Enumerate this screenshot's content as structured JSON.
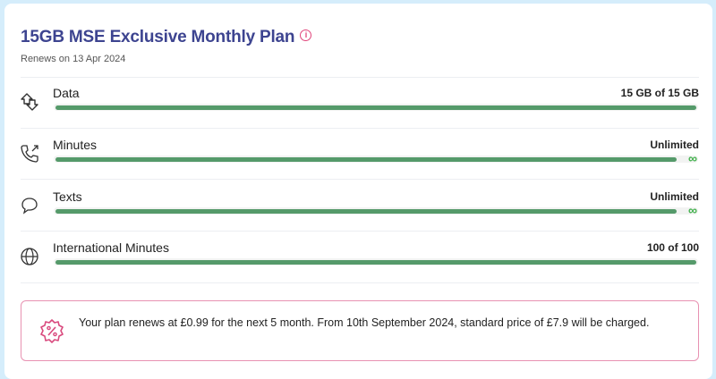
{
  "plan": {
    "title": "15GB MSE Exclusive Monthly Plan",
    "info_icon": "info-circle-icon",
    "renews": "Renews on 13 Apr 2024"
  },
  "usage": [
    {
      "label": "Data",
      "value": "15 GB of 15 GB",
      "icon": "data-arrows-icon",
      "fill_percent": 100,
      "unlimited": false
    },
    {
      "label": "Minutes",
      "value": "Unlimited",
      "icon": "phone-icon",
      "fill_percent": 100,
      "unlimited": true
    },
    {
      "label": "Texts",
      "value": "Unlimited",
      "icon": "chat-bubble-icon",
      "fill_percent": 100,
      "unlimited": true
    },
    {
      "label": "International Minutes",
      "value": "100 of 100",
      "icon": "globe-icon",
      "fill_percent": 100,
      "unlimited": false
    }
  ],
  "banner": {
    "icon": "discount-badge-icon",
    "text": "Your plan renews at £0.99 for the next 5 month. From 10th September 2024, standard price of £7.9 will be charged."
  },
  "colors": {
    "title": "#3d4490",
    "accent": "#e0457b",
    "bar": "#559a6a",
    "infinity": "#3fb04a"
  }
}
